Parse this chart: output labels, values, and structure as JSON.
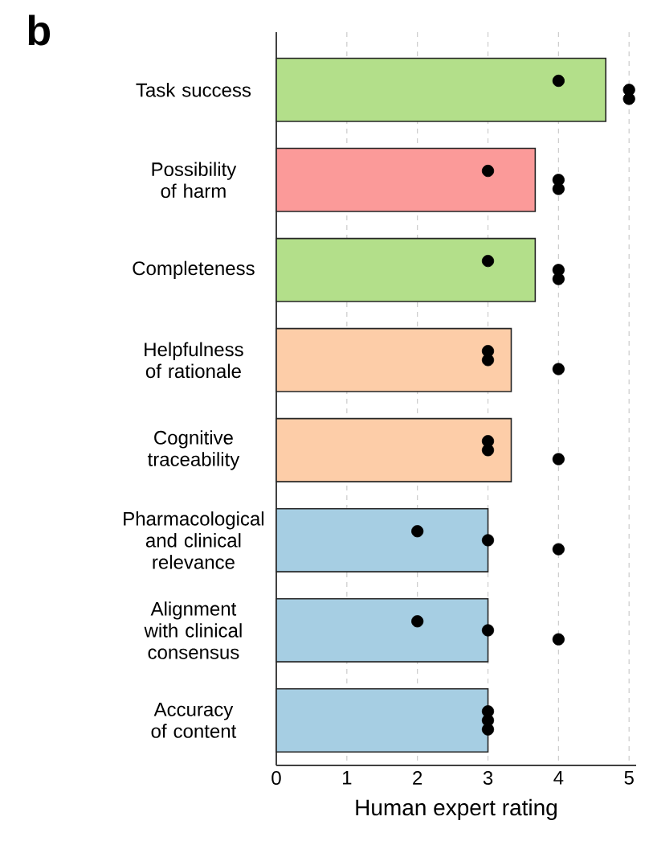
{
  "chart_data": {
    "type": "bar",
    "title": "b",
    "xlabel": "Human expert rating",
    "orientation": "horizontal",
    "categories": [
      "Task success",
      "Possibility of harm",
      "Completeness",
      "Helpfulness of rationale",
      "Cognitive traceability",
      "Pharmacological and clinical relevance",
      "Alignment with clinical consensus",
      "Accuracy of content"
    ],
    "xlim": [
      0,
      5.1
    ],
    "xticks": [
      0,
      1,
      2,
      3,
      4,
      5
    ],
    "grid": "x",
    "series": [
      {
        "values": [
          4.67,
          3.67,
          3.67,
          3.33,
          3.33,
          3,
          3,
          3
        ],
        "colors": [
          "#b3df8a",
          "#fb9a99",
          "#b3df8a",
          "#fdcda8",
          "#fdcda8",
          "#a6cee3",
          "#a6cee3",
          "#a6cee3"
        ]
      },
      {
        "type": "scatter",
        "color": "#000000",
        "marker": "circle",
        "values": [
          4,
          3,
          3,
          3,
          3,
          2,
          2,
          3
        ]
      },
      {
        "type": "scatter",
        "color": "#000000",
        "marker": "circle",
        "values": [
          5,
          4,
          4,
          3,
          3,
          3,
          3,
          3
        ]
      },
      {
        "type": "scatter",
        "color": "#000000",
        "marker": "circle",
        "values": [
          5,
          4,
          4,
          4,
          4,
          4,
          4,
          3
        ]
      }
    ]
  }
}
